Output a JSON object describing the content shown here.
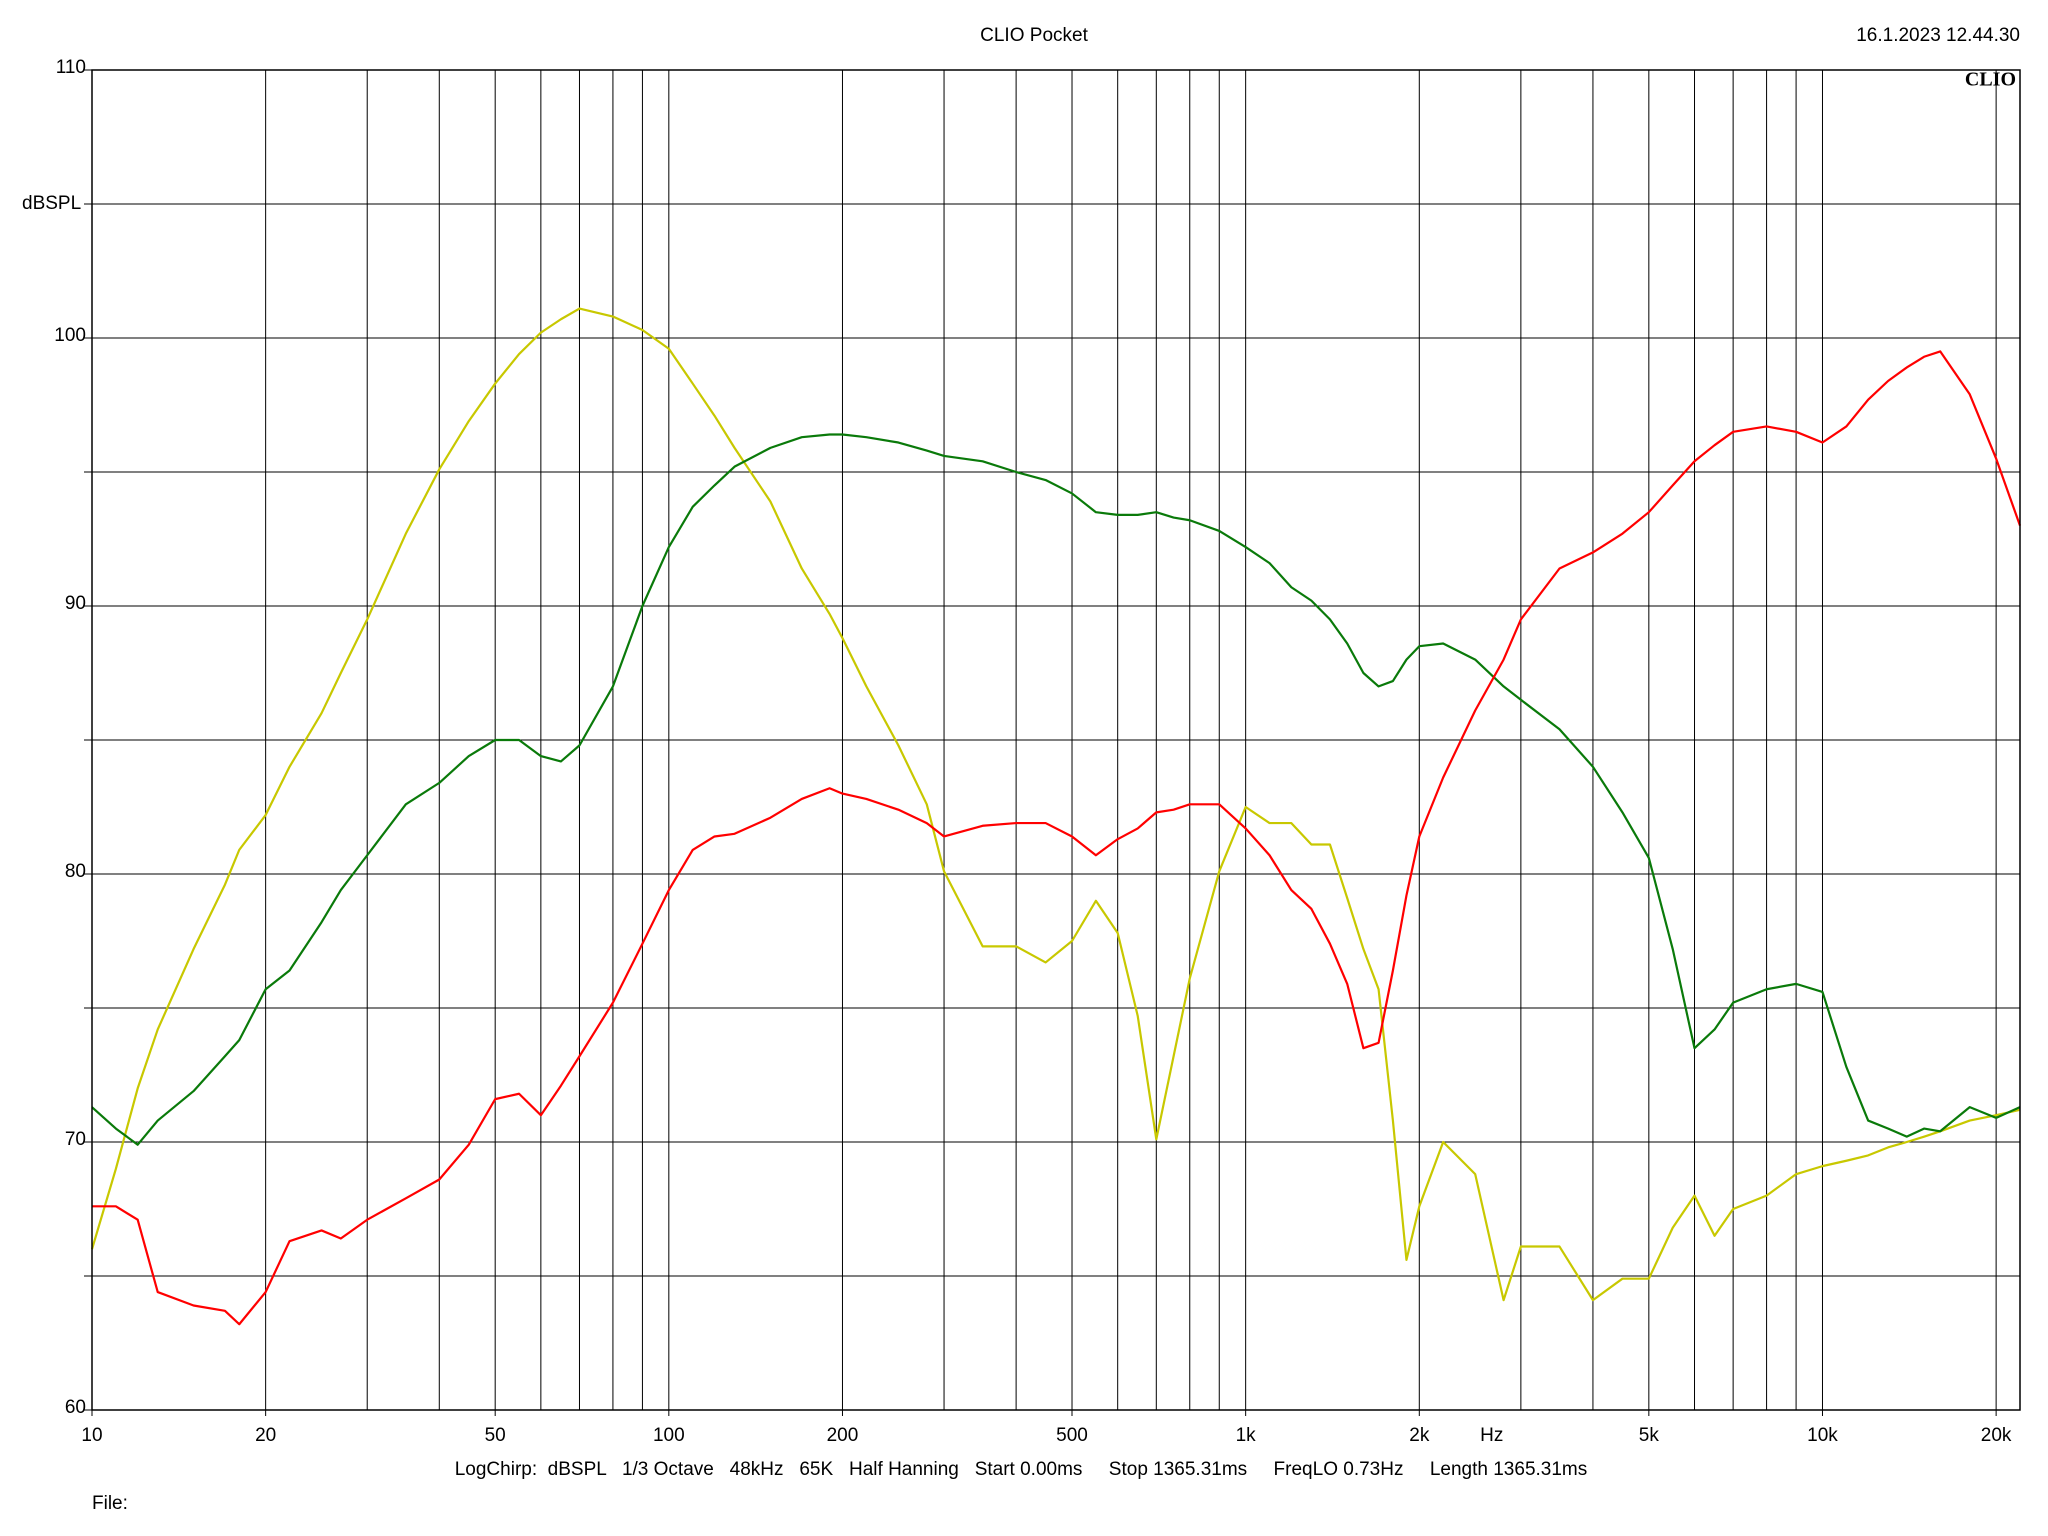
{
  "chart_data": {
    "type": "line",
    "title": "CLIO Pocket",
    "timestamp": "16.1.2023 12.44.30",
    "logo": "CLIO",
    "y_label": "dBSPL",
    "x_label": "Hz",
    "footer": "LogChirp:  dBSPL   1/3 Octave   48kHz   65K   Half Hanning   Start 0.00ms     Stop 1365.31ms     FreqLO 0.73Hz     Length 1365.31ms",
    "file_label": "File:",
    "x_log": true,
    "grid": true,
    "xlim": [
      10,
      22000
    ],
    "ylim": [
      60,
      110
    ],
    "xticks": [
      10,
      20,
      50,
      100,
      200,
      500,
      {
        "value": 1000,
        "label": "1k"
      },
      {
        "value": 2000,
        "label": "2k"
      },
      {
        "value": 5000,
        "label": "5k"
      },
      {
        "value": 10000,
        "label": "10k"
      },
      {
        "value": 20000,
        "label": "20k"
      }
    ],
    "yticks": [
      60,
      70,
      80,
      90,
      100,
      110
    ],
    "xgrid": [
      10,
      20,
      30,
      40,
      50,
      60,
      70,
      80,
      90,
      100,
      200,
      300,
      400,
      500,
      600,
      700,
      800,
      900,
      1000,
      2000,
      3000,
      4000,
      5000,
      6000,
      7000,
      8000,
      9000,
      10000,
      20000
    ],
    "ygrid": [
      65,
      75,
      85,
      95,
      105
    ],
    "x": [
      10,
      11,
      12,
      13,
      15,
      17,
      18,
      20,
      22,
      25,
      27,
      30,
      35,
      40,
      45,
      50,
      55,
      60,
      65,
      70,
      80,
      90,
      100,
      110,
      120,
      130,
      150,
      170,
      190,
      200,
      220,
      250,
      280,
      300,
      350,
      400,
      450,
      500,
      550,
      600,
      650,
      700,
      750,
      800,
      900,
      1000,
      1100,
      1200,
      1300,
      1400,
      1500,
      1600,
      1700,
      1800,
      1900,
      2000,
      2200,
      2500,
      2800,
      3000,
      3500,
      4000,
      4500,
      5000,
      5500,
      6000,
      6500,
      7000,
      8000,
      9000,
      10000,
      11000,
      12000,
      13000,
      14000,
      15000,
      16000,
      18000,
      20000,
      22000
    ],
    "series": [
      {
        "color": "#c8c800",
        "values": [
          66,
          69,
          72,
          74.2,
          77.2,
          79.6,
          80.9,
          82.2,
          84,
          86,
          87.5,
          89.5,
          92.7,
          95.1,
          96.9,
          98.3,
          99.4,
          100.2,
          100.7,
          101.1,
          100.8,
          100.3,
          99.6,
          98.3,
          97.1,
          95.9,
          93.9,
          91.4,
          89.7,
          88.8,
          87,
          84.8,
          82.6,
          80.1,
          77.3,
          77.3,
          76.7,
          77.5,
          79,
          77.8,
          74.7,
          70.1,
          73.2,
          76.1,
          80.1,
          82.5,
          81.9,
          81.9,
          81.1,
          81.1,
          79.1,
          77.2,
          75.7,
          70.8,
          65.6,
          67.6,
          70.0,
          68.8,
          64.1,
          66.1,
          66.1,
          64.1,
          64.9,
          64.9,
          66.8,
          68.0,
          66.5,
          67.5,
          68.0,
          68.8,
          69.1,
          69.3,
          69.5,
          69.8,
          70.0,
          70.2,
          70.4,
          70.8,
          71.0,
          71.2
        ]
      },
      {
        "color": "#0a7a0a",
        "values": [
          71.3,
          70.5,
          69.9,
          70.8,
          71.9,
          73.2,
          73.8,
          75.7,
          76.4,
          78.2,
          79.4,
          80.7,
          82.6,
          83.4,
          84.4,
          85.0,
          85.0,
          84.4,
          84.2,
          84.8,
          87.0,
          90.0,
          92.2,
          93.7,
          94.5,
          95.2,
          95.9,
          96.3,
          96.4,
          96.4,
          96.3,
          96.1,
          95.8,
          95.6,
          95.4,
          95.0,
          94.7,
          94.2,
          93.5,
          93.4,
          93.4,
          93.5,
          93.3,
          93.2,
          92.8,
          92.2,
          91.6,
          90.7,
          90.2,
          89.5,
          88.6,
          87.5,
          87.0,
          87.2,
          88.0,
          88.5,
          88.6,
          88.0,
          87.0,
          86.5,
          85.4,
          84.0,
          82.3,
          80.6,
          77.2,
          73.5,
          74.2,
          75.2,
          75.7,
          75.9,
          75.6,
          72.8,
          70.8,
          70.5,
          70.2,
          70.5,
          70.4,
          71.3,
          70.9,
          71.3
        ]
      },
      {
        "color": "#ff0000",
        "values": [
          67.6,
          67.6,
          67.1,
          64.4,
          63.9,
          63.7,
          63.2,
          64.4,
          66.3,
          66.7,
          66.4,
          67.1,
          67.9,
          68.6,
          69.9,
          71.6,
          71.8,
          71.0,
          72.1,
          73.2,
          75.2,
          77.4,
          79.4,
          80.9,
          81.4,
          81.5,
          82.1,
          82.8,
          83.2,
          83.0,
          82.8,
          82.4,
          81.9,
          81.4,
          81.8,
          81.9,
          81.9,
          81.4,
          80.7,
          81.3,
          81.7,
          82.3,
          82.4,
          82.6,
          82.6,
          81.7,
          80.7,
          79.4,
          78.7,
          77.4,
          75.9,
          73.5,
          73.7,
          76.4,
          79.2,
          81.4,
          83.6,
          86.1,
          88.0,
          89.5,
          91.4,
          92.0,
          92.7,
          93.5,
          94.5,
          95.4,
          96.0,
          96.5,
          96.7,
          96.5,
          96.1,
          96.7,
          97.7,
          98.4,
          98.9,
          99.3,
          99.5,
          97.9,
          95.5,
          93.0
        ]
      }
    ]
  }
}
